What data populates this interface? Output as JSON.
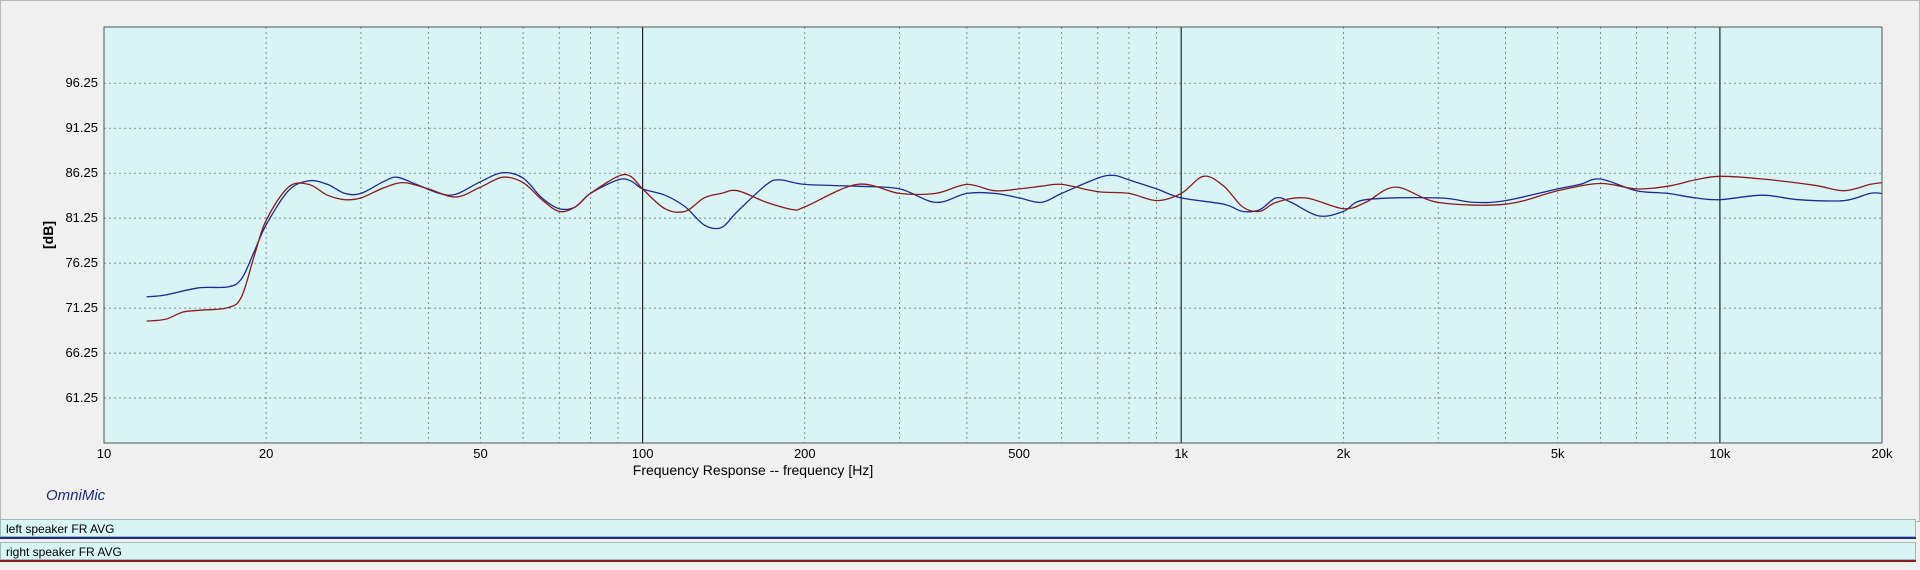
{
  "app": {
    "brand": "OmniMic"
  },
  "legend": {
    "items": [
      {
        "label": "left speaker FR AVG",
        "color": "#1f2a8f"
      },
      {
        "label": "right speaker FR AVG",
        "color": "#8b1a1a"
      }
    ]
  },
  "colors": {
    "plot_bg": "#d8f4f4",
    "grid": "#606060"
  },
  "chart_data": {
    "type": "line",
    "xlabel": "Frequency Response -- frequency [Hz]",
    "ylabel": "[dB]",
    "x_scale": "log",
    "xlim": [
      10,
      20000
    ],
    "ylim": [
      56.25,
      102.5
    ],
    "x_ticks": [
      {
        "value": 10,
        "label": "10"
      },
      {
        "value": 20,
        "label": "20"
      },
      {
        "value": 50,
        "label": "50"
      },
      {
        "value": 100,
        "label": "100"
      },
      {
        "value": 200,
        "label": "200"
      },
      {
        "value": 500,
        "label": "500"
      },
      {
        "value": 1000,
        "label": "1k"
      },
      {
        "value": 2000,
        "label": "2k"
      },
      {
        "value": 5000,
        "label": "5k"
      },
      {
        "value": 10000,
        "label": "10k"
      },
      {
        "value": 20000,
        "label": "20k"
      }
    ],
    "y_ticks": [
      {
        "value": 61.25,
        "label": "61.25"
      },
      {
        "value": 66.25,
        "label": "66.25"
      },
      {
        "value": 71.25,
        "label": "71.25"
      },
      {
        "value": 76.25,
        "label": "76.25"
      },
      {
        "value": 81.25,
        "label": "81.25"
      },
      {
        "value": 86.25,
        "label": "86.25"
      },
      {
        "value": 91.25,
        "label": "91.25"
      },
      {
        "value": 96.25,
        "label": "96.25"
      }
    ],
    "grid": true,
    "series": [
      {
        "name": "left speaker FR AVG",
        "color": "#1f2a8f",
        "points": [
          [
            12,
            72.5
          ],
          [
            13,
            72.7
          ],
          [
            15,
            73.5
          ],
          [
            17,
            73.6
          ],
          [
            18,
            74.5
          ],
          [
            19,
            77.5
          ],
          [
            20,
            80.5
          ],
          [
            22,
            84.3
          ],
          [
            24,
            85.4
          ],
          [
            26,
            85
          ],
          [
            28,
            84
          ],
          [
            30,
            84
          ],
          [
            33,
            85.3
          ],
          [
            35,
            85.8
          ],
          [
            38,
            85
          ],
          [
            42,
            84
          ],
          [
            45,
            83.9
          ],
          [
            50,
            85.3
          ],
          [
            55,
            86.3
          ],
          [
            60,
            85.7
          ],
          [
            65,
            83.5
          ],
          [
            70,
            82.3
          ],
          [
            75,
            82.5
          ],
          [
            80,
            84
          ],
          [
            90,
            85.5
          ],
          [
            95,
            85.4
          ],
          [
            100,
            84.5
          ],
          [
            110,
            83.8
          ],
          [
            120,
            82.5
          ],
          [
            130,
            80.5
          ],
          [
            140,
            80.2
          ],
          [
            150,
            82
          ],
          [
            170,
            85
          ],
          [
            180,
            85.5
          ],
          [
            200,
            85
          ],
          [
            250,
            84.8
          ],
          [
            300,
            84.5
          ],
          [
            350,
            83
          ],
          [
            400,
            84
          ],
          [
            450,
            84
          ],
          [
            500,
            83.5
          ],
          [
            550,
            83
          ],
          [
            600,
            84
          ],
          [
            700,
            85.7
          ],
          [
            750,
            86
          ],
          [
            800,
            85.5
          ],
          [
            900,
            84.5
          ],
          [
            1000,
            83.5
          ],
          [
            1200,
            82.8
          ],
          [
            1300,
            82
          ],
          [
            1400,
            82.2
          ],
          [
            1500,
            83.5
          ],
          [
            1600,
            83
          ],
          [
            1800,
            81.5
          ],
          [
            2000,
            82
          ],
          [
            2200,
            83.3
          ],
          [
            3000,
            83.5
          ],
          [
            3500,
            83
          ],
          [
            4000,
            83.2
          ],
          [
            5000,
            84.5
          ],
          [
            5500,
            85
          ],
          [
            6000,
            85.6
          ],
          [
            7000,
            84.3
          ],
          [
            8000,
            84
          ],
          [
            9000,
            83.5
          ],
          [
            10000,
            83.3
          ],
          [
            12000,
            83.8
          ],
          [
            14000,
            83.3
          ],
          [
            17000,
            83.2
          ],
          [
            19000,
            84
          ],
          [
            20000,
            84
          ]
        ]
      },
      {
        "name": "right speaker FR AVG",
        "color": "#8b1a1a",
        "points": [
          [
            12,
            69.8
          ],
          [
            13,
            70
          ],
          [
            14,
            70.8
          ],
          [
            15,
            71
          ],
          [
            17,
            71.3
          ],
          [
            18,
            72.5
          ],
          [
            19,
            77
          ],
          [
            20,
            81
          ],
          [
            22,
            84.7
          ],
          [
            24,
            85
          ],
          [
            26,
            83.8
          ],
          [
            28,
            83.3
          ],
          [
            30,
            83.5
          ],
          [
            33,
            84.6
          ],
          [
            36,
            85.2
          ],
          [
            40,
            84.5
          ],
          [
            45,
            83.6
          ],
          [
            50,
            84.7
          ],
          [
            55,
            85.8
          ],
          [
            60,
            85.2
          ],
          [
            65,
            83.3
          ],
          [
            70,
            82
          ],
          [
            75,
            82.5
          ],
          [
            80,
            84
          ],
          [
            90,
            85.9
          ],
          [
            95,
            85.9
          ],
          [
            100,
            84.5
          ],
          [
            110,
            82.3
          ],
          [
            120,
            82
          ],
          [
            130,
            83.5
          ],
          [
            140,
            84
          ],
          [
            150,
            84.3
          ],
          [
            170,
            83
          ],
          [
            190,
            82.2
          ],
          [
            200,
            82.5
          ],
          [
            250,
            85
          ],
          [
            300,
            84
          ],
          [
            350,
            84
          ],
          [
            400,
            85
          ],
          [
            450,
            84.3
          ],
          [
            500,
            84.5
          ],
          [
            550,
            84.8
          ],
          [
            600,
            85
          ],
          [
            700,
            84.2
          ],
          [
            800,
            84
          ],
          [
            900,
            83.2
          ],
          [
            1000,
            84
          ],
          [
            1100,
            85.9
          ],
          [
            1200,
            84.8
          ],
          [
            1300,
            82.5
          ],
          [
            1400,
            82
          ],
          [
            1500,
            83
          ],
          [
            1700,
            83.5
          ],
          [
            2000,
            82.3
          ],
          [
            2200,
            83
          ],
          [
            2500,
            84.7
          ],
          [
            3000,
            83
          ],
          [
            4000,
            82.8
          ],
          [
            5000,
            84.3
          ],
          [
            6000,
            85.1
          ],
          [
            7000,
            84.5
          ],
          [
            8000,
            84.8
          ],
          [
            9000,
            85.5
          ],
          [
            10000,
            85.9
          ],
          [
            12000,
            85.6
          ],
          [
            15000,
            84.9
          ],
          [
            17000,
            84.3
          ],
          [
            19000,
            85
          ],
          [
            20000,
            85.2
          ]
        ]
      }
    ]
  }
}
